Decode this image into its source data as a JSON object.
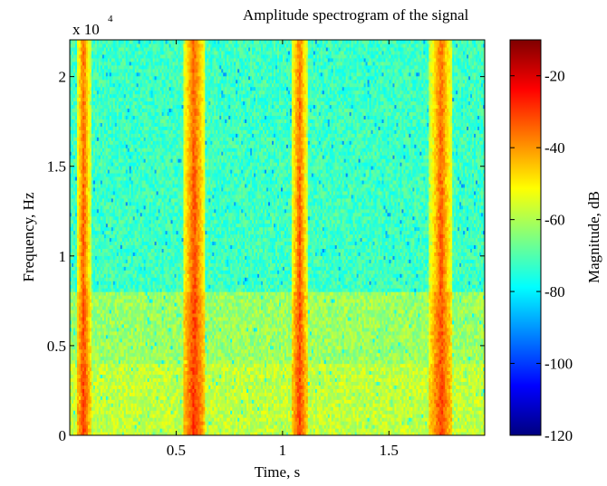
{
  "chart_data": {
    "type": "heatmap",
    "title": "Amplitude spectrogram of the signal",
    "xlabel": "Time, s",
    "ylabel": "Frequency, Hz",
    "y_multiplier_label": "x 10",
    "y_multiplier_exponent": "4",
    "colorbar_label": "Magnitude, dB",
    "xlim": [
      0.0,
      1.95
    ],
    "ylim": [
      0,
      22050
    ],
    "x_ticks": [
      0.5,
      1.0,
      1.5
    ],
    "x_tick_labels": [
      "0.5",
      "1",
      "1.5"
    ],
    "y_ticks": [
      0,
      5000,
      10000,
      15000,
      20000
    ],
    "y_tick_labels": [
      "0",
      "0.5",
      "1",
      "1.5",
      "2"
    ],
    "colorbar_range": [
      -120,
      -10
    ],
    "colorbar_ticks": [
      -120,
      -100,
      -80,
      -60,
      -40,
      -20
    ],
    "colorbar_tick_labels": [
      "-120",
      "-100",
      "-80",
      "-60",
      "-40",
      "-20"
    ],
    "colormap": "jet",
    "background_level_db": {
      "above_8000_hz": -72,
      "below_8000_hz": -62,
      "below_4000_hz": -58
    },
    "bursts": [
      {
        "time_start": 0.03,
        "time_end": 0.1,
        "peak_time": 0.05,
        "level_db": -30
      },
      {
        "time_start": 0.53,
        "time_end": 0.64,
        "peak_time": 0.55,
        "level_db": -28
      },
      {
        "time_start": 1.04,
        "time_end": 1.12,
        "peak_time": 1.07,
        "level_db": -30
      },
      {
        "time_start": 1.69,
        "time_end": 1.8,
        "peak_time": 1.72,
        "level_db": -30
      }
    ]
  }
}
